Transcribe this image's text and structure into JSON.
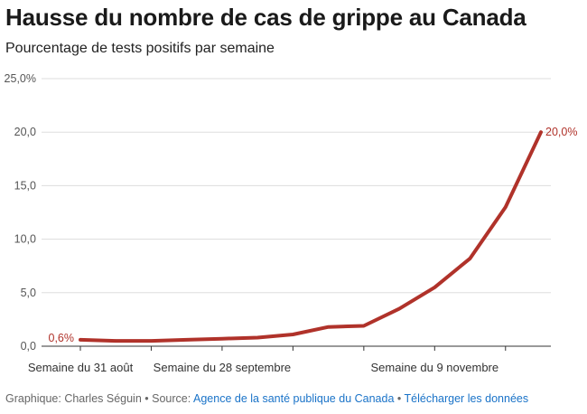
{
  "header": {
    "title": "Hausse du nombre de cas de grippe au Canada",
    "subtitle": "Pourcentage de tests positifs par semaine"
  },
  "footer": {
    "credit": "Graphique: Charles Séguin",
    "bullet1": " • ",
    "source_label": "Source: ",
    "source_link": "Agence de la santé publique du Canada",
    "bullet2": " • ",
    "download_link": "Télécharger les données"
  },
  "colors": {
    "line": "#b0322a",
    "grid": "#dddddd",
    "axis": "#333333",
    "tick_text": "#555555"
  },
  "chart_data": {
    "type": "line",
    "title": "Hausse du nombre de cas de grippe au Canada",
    "subtitle": "Pourcentage de tests positifs par semaine",
    "xlabel": "",
    "ylabel": "",
    "ylim": [
      0,
      25
    ],
    "y_ticks": [
      "0,0",
      "5,0",
      "10,0",
      "15,0",
      "20,0",
      "25,0%"
    ],
    "y_tick_values": [
      0,
      5,
      10,
      15,
      20,
      25
    ],
    "x_tick_labels": [
      {
        "index": 0,
        "label": "Semaine du 31 août"
      },
      {
        "index": 4,
        "label": "Semaine du 28 septembre"
      },
      {
        "index": 10,
        "label": "Semaine du 9 novembre"
      }
    ],
    "x_tick_indices": [
      0,
      2,
      4,
      6,
      8,
      10,
      12
    ],
    "series": [
      {
        "name": "Pourcentage de tests positifs",
        "values": [
          0.6,
          0.5,
          0.5,
          0.6,
          0.7,
          0.8,
          1.1,
          1.8,
          1.9,
          3.5,
          5.5,
          8.2,
          13.0,
          20.0
        ]
      }
    ],
    "annotations": [
      {
        "index": 0,
        "label": "0,6%"
      },
      {
        "index": 13,
        "label": "20,0%"
      }
    ],
    "grid": true
  }
}
